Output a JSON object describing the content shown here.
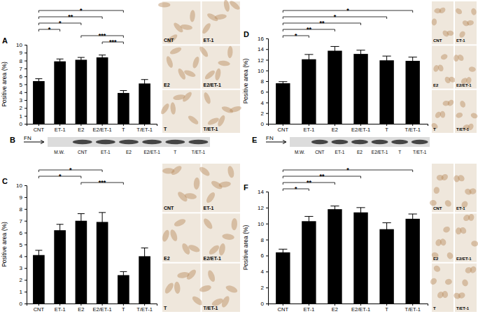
{
  "chart_data": [
    {
      "type": "bar",
      "title": "A",
      "y_label": "Positive area (%)",
      "categories": [
        "CNT",
        "ET-1",
        "E2",
        "E2/ET-1",
        "T",
        "T/ET-1"
      ],
      "values": [
        5.4,
        7.9,
        8.1,
        8.4,
        3.9,
        5.1
      ],
      "errors": [
        0.3,
        0.3,
        0.3,
        0.3,
        0.3,
        0.5
      ],
      "color": "#000000",
      "ylim": [
        0,
        10
      ],
      "yticks": [
        0,
        1,
        2,
        3,
        4,
        5,
        6,
        7,
        8,
        9,
        10
      ],
      "grid": false,
      "annotations": [
        {
          "from": 3,
          "to": 4,
          "label": "***"
        },
        {
          "from": 2,
          "to": 4,
          "label": "***"
        },
        {
          "from": 0,
          "to": 1,
          "label": "*"
        },
        {
          "from": 0,
          "to": 2,
          "label": "*"
        },
        {
          "from": 0,
          "to": 3,
          "label": "**"
        },
        {
          "from": 0,
          "to": 4,
          "label": "*"
        }
      ]
    },
    {
      "type": "bar",
      "title": "C",
      "y_label": "Positive area (%)",
      "categories": [
        "CNT",
        "ET-1",
        "E2",
        "E2/ET-1",
        "T",
        "T/ET-1"
      ],
      "values": [
        4.1,
        6.2,
        7.0,
        6.9,
        2.4,
        4.0
      ],
      "errors": [
        0.4,
        0.5,
        0.6,
        0.8,
        0.3,
        0.7
      ],
      "color": "#000000",
      "ylim": [
        0,
        10
      ],
      "yticks": [
        0,
        1,
        2,
        3,
        4,
        5,
        6,
        7,
        8,
        9,
        10
      ],
      "grid": false,
      "annotations": [
        {
          "from": 2,
          "to": 4,
          "label": "***"
        },
        {
          "from": 0,
          "to": 2,
          "label": "*"
        },
        {
          "from": 0,
          "to": 3,
          "label": "*"
        }
      ]
    },
    {
      "type": "bar",
      "title": "D",
      "y_label": "Positive area (%)",
      "categories": [
        "CNT",
        "ET-1",
        "E2",
        "E2/ET-1",
        "T",
        "T/ET-1"
      ],
      "values": [
        7.6,
        12.1,
        13.7,
        13.1,
        11.9,
        11.8
      ],
      "errors": [
        0.3,
        0.9,
        0.8,
        0.7,
        0.8,
        0.7
      ],
      "color": "#000000",
      "ylim": [
        0,
        16
      ],
      "yticks": [
        0,
        2,
        4,
        6,
        8,
        10,
        12,
        14,
        16
      ],
      "grid": false,
      "annotations": [
        {
          "from": 0,
          "to": 1,
          "label": "*"
        },
        {
          "from": 0,
          "to": 2,
          "label": "**"
        },
        {
          "from": 0,
          "to": 3,
          "label": "**"
        },
        {
          "from": 0,
          "to": 4,
          "label": "*"
        },
        {
          "from": 0,
          "to": 5,
          "label": "*"
        }
      ]
    },
    {
      "type": "bar",
      "title": "F",
      "y_label": "Positive area (%)",
      "categories": [
        "CNT",
        "ET-1",
        "E2",
        "E2/ET-1",
        "T",
        "T/ET-1"
      ],
      "values": [
        6.4,
        10.3,
        11.8,
        11.4,
        9.3,
        10.6
      ],
      "errors": [
        0.4,
        0.6,
        0.4,
        0.6,
        0.8,
        0.6
      ],
      "color": "#000000",
      "ylim": [
        0,
        14
      ],
      "yticks": [
        0,
        2,
        4,
        6,
        8,
        10,
        12,
        14
      ],
      "grid": false,
      "annotations": [
        {
          "from": 0,
          "to": 1,
          "label": "*"
        },
        {
          "from": 0,
          "to": 2,
          "label": "**"
        },
        {
          "from": 0,
          "to": 3,
          "label": "**"
        },
        {
          "from": 0,
          "to": 5,
          "label": "*"
        }
      ]
    }
  ],
  "blots": [
    {
      "panel": "B",
      "band_label": "FN",
      "lanes": [
        "M.W.",
        "CNT",
        "ET-1",
        "E2",
        "E2/ET-1",
        "T",
        "T/ET-1"
      ]
    },
    {
      "panel": "E",
      "band_label": "FN",
      "lanes": [
        "M.W.",
        "CNT",
        "ET-1",
        "E2",
        "E2/ET-1",
        "T",
        "T/ET-1"
      ]
    }
  ],
  "micrographs": [
    {
      "labels": [
        "CNT",
        "ET-1",
        "E2",
        "E2/ET-1",
        "T",
        "T/ET-1"
      ]
    },
    {
      "labels": [
        "CNT",
        "ET-1",
        "E2",
        "E2/ET-1",
        "T",
        "T/ET-1"
      ]
    },
    {
      "labels": [
        "CNT",
        "ET-1",
        "E2",
        "E2/ET-1",
        "T",
        "T/ET-1"
      ]
    },
    {
      "labels": [
        "CNT",
        "ET-1",
        "E2",
        "E2/ET-1",
        "T",
        "T/ET-1"
      ]
    }
  ]
}
